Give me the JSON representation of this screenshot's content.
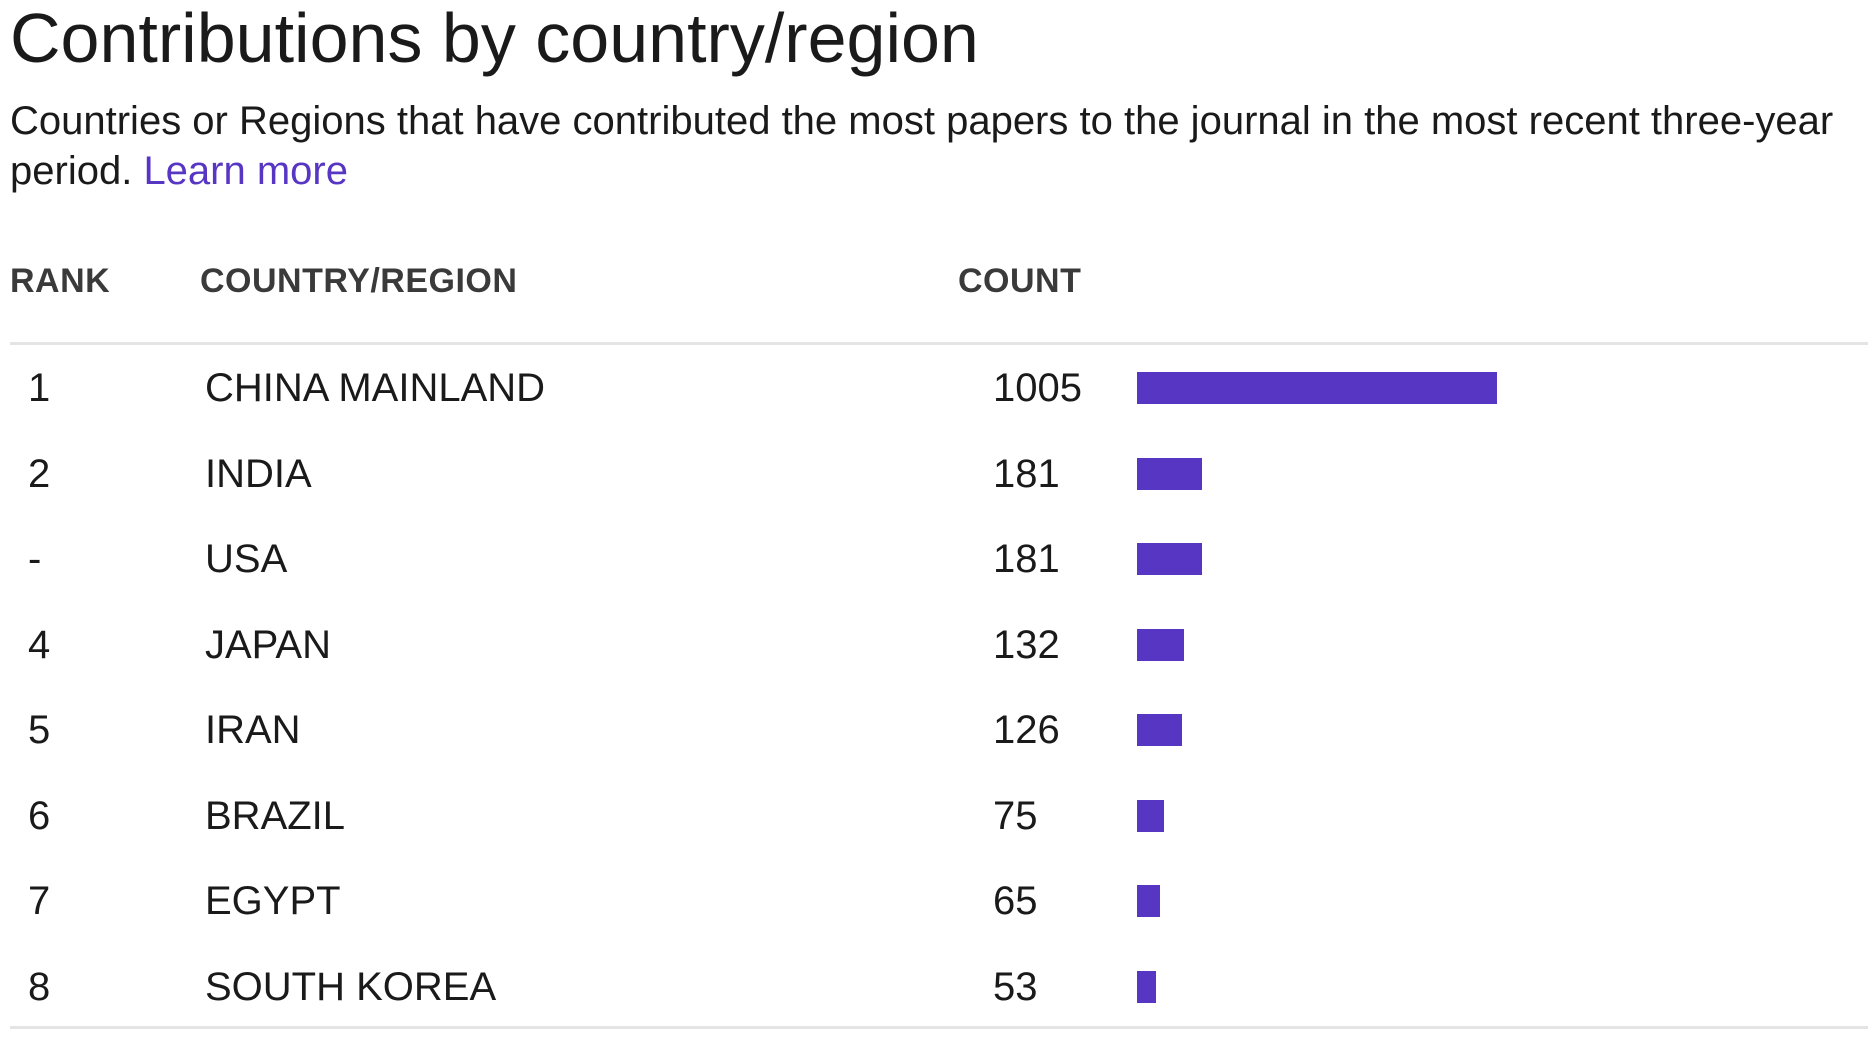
{
  "header": {
    "title": "Contributions by country/region",
    "subtitle_text": "Countries or Regions that have contributed the most papers to the journal in the most recent three-year period.",
    "learn_more_label": "Learn more"
  },
  "table": {
    "columns": {
      "rank": "RANK",
      "country": "COUNTRY/REGION",
      "count": "COUNT"
    },
    "bar_color": "#5836c4",
    "max_count": 1005,
    "rows": [
      {
        "rank": "1",
        "country": "CHINA MAINLAND",
        "count": "1005",
        "value": 1005
      },
      {
        "rank": "2",
        "country": "INDIA",
        "count": "181",
        "value": 181
      },
      {
        "rank": "-",
        "country": "USA",
        "count": "181",
        "value": 181
      },
      {
        "rank": "4",
        "country": "JAPAN",
        "count": "132",
        "value": 132
      },
      {
        "rank": "5",
        "country": "IRAN",
        "count": "126",
        "value": 126
      },
      {
        "rank": "6",
        "country": "BRAZIL",
        "count": "75",
        "value": 75
      },
      {
        "rank": "7",
        "country": "EGYPT",
        "count": "65",
        "value": 65
      },
      {
        "rank": "8",
        "country": "SOUTH KOREA",
        "count": "53",
        "value": 53
      }
    ]
  }
}
